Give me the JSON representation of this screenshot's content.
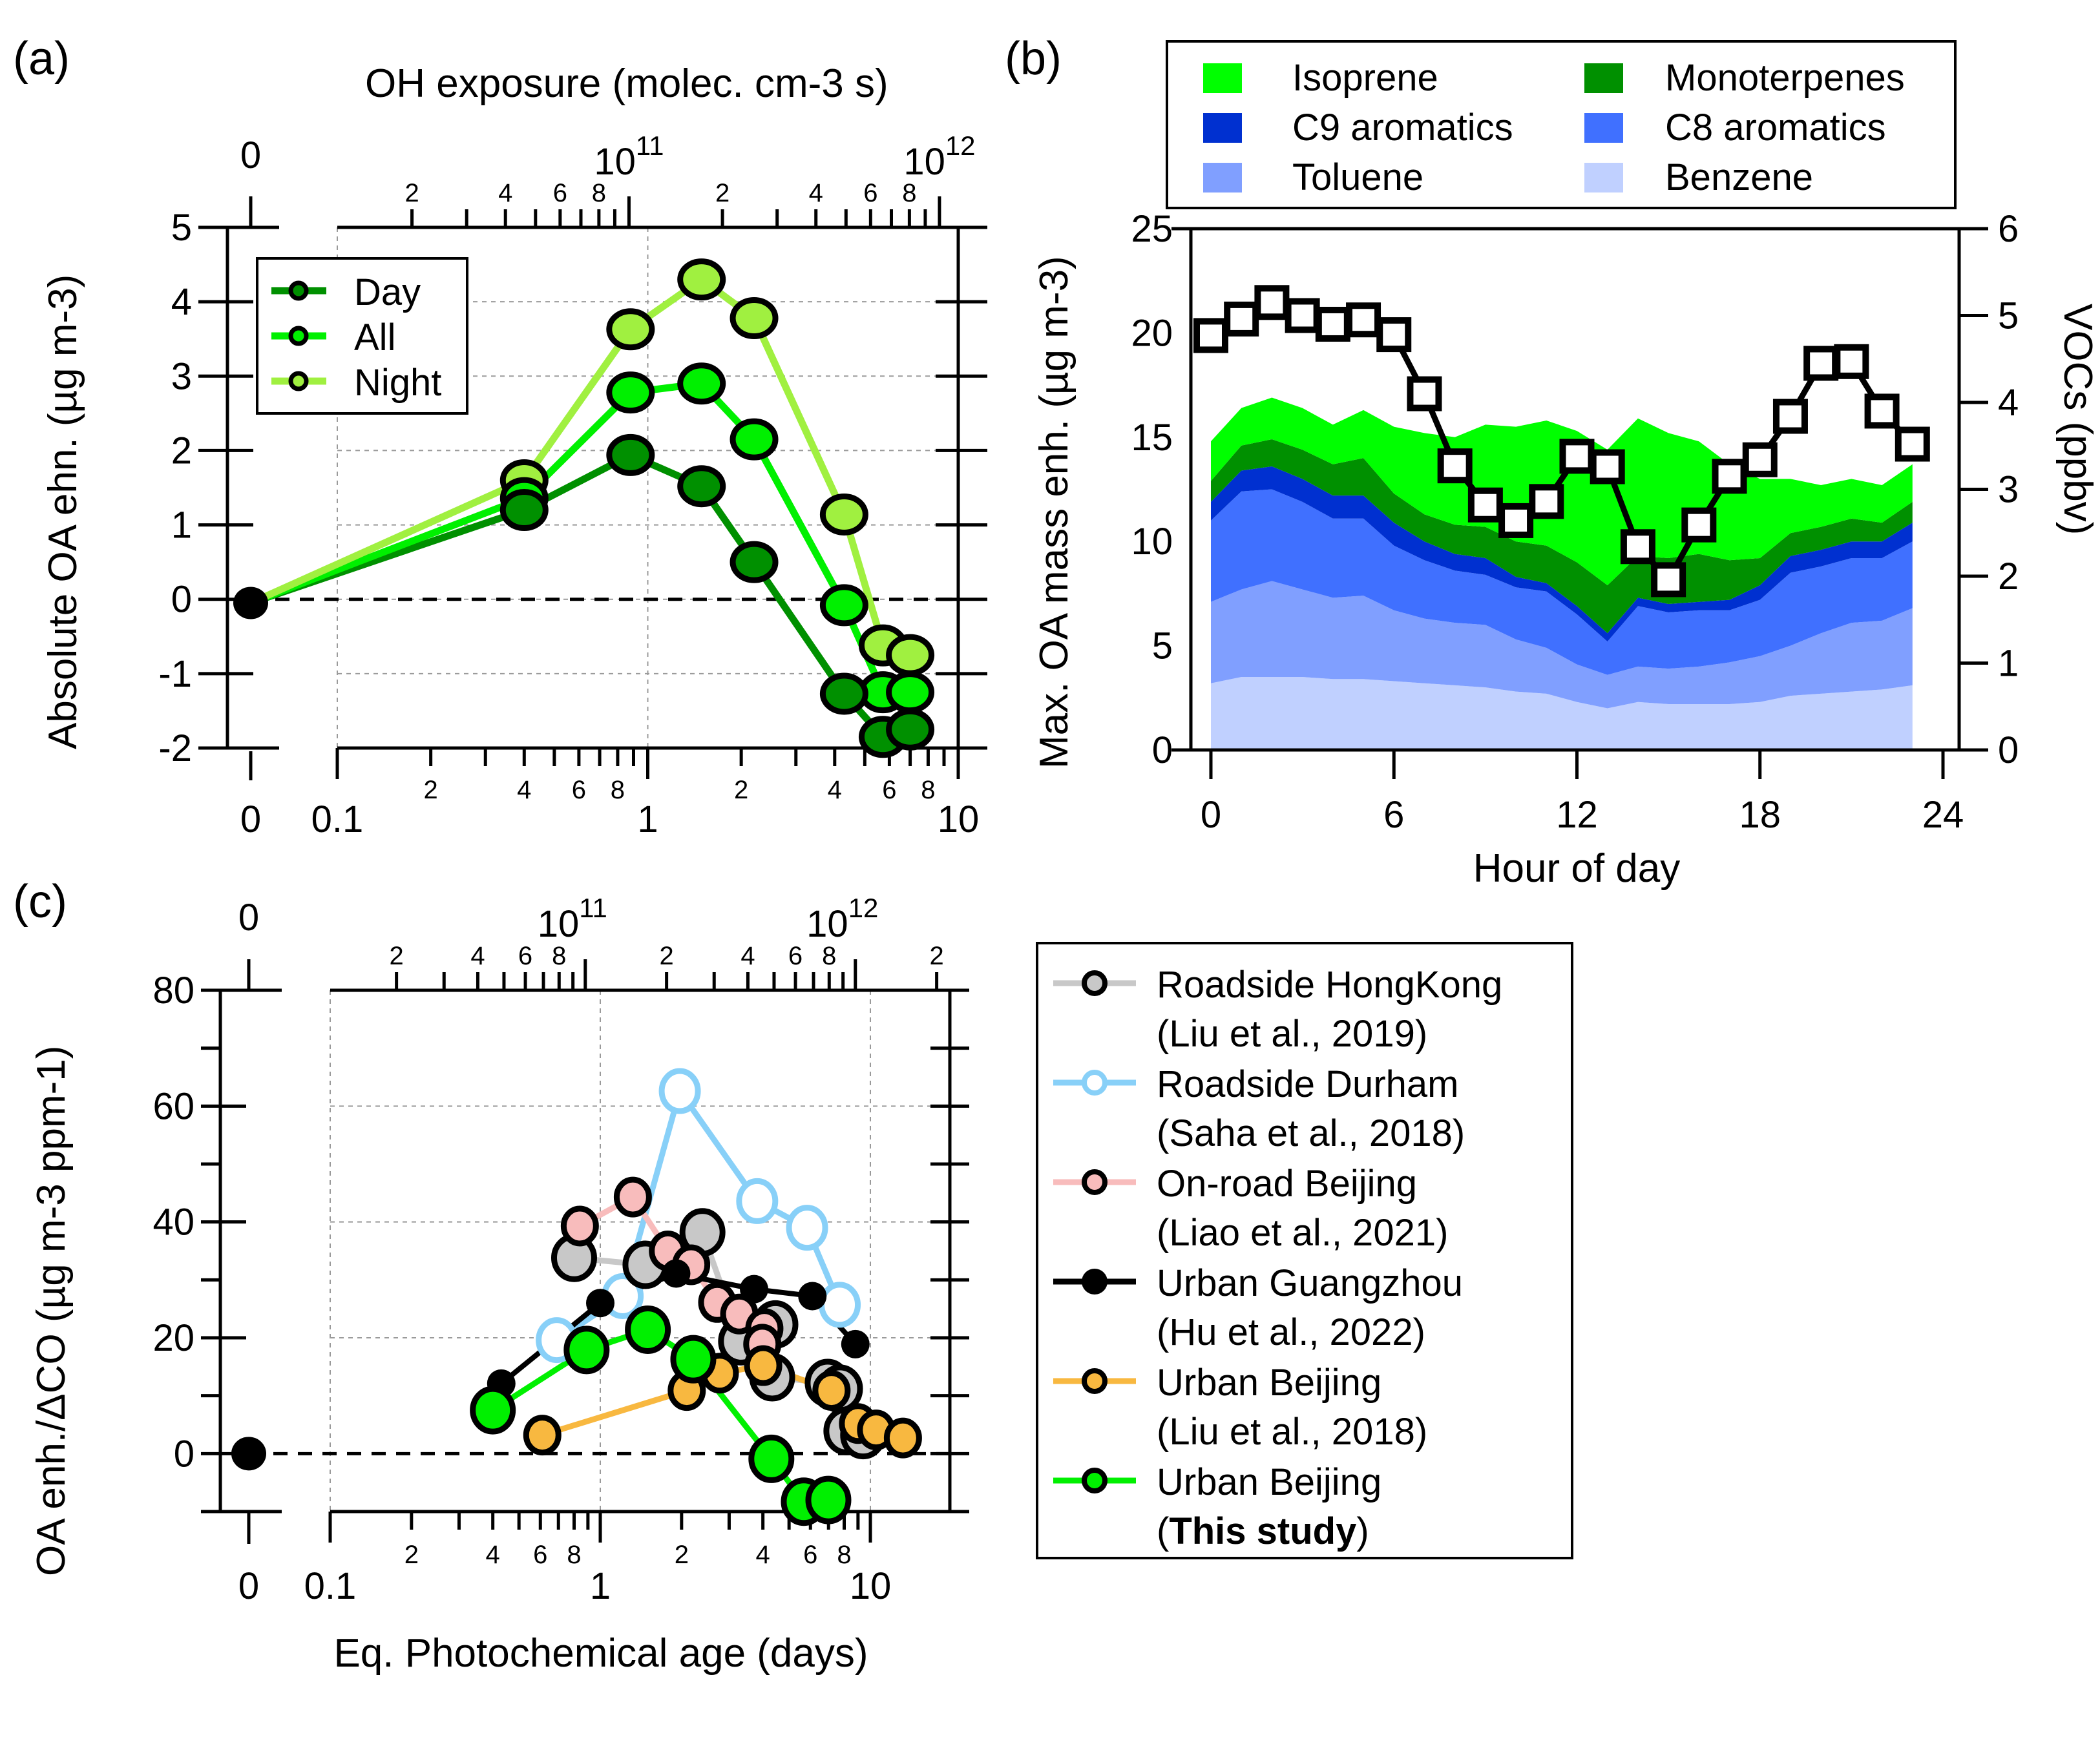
{
  "figure": {
    "panel_labels": [
      "(a)",
      "(b)",
      "(c)"
    ]
  },
  "chart_data": [
    {
      "id": "a",
      "type": "scatter",
      "title": "",
      "xlabel": "",
      "xlabel_top": "OH exposure (molec. cm-3 s)",
      "ylabel": "Absolute OA ehn. (µg m-3)",
      "xscale": "log",
      "xlim": [
        0.1,
        10
      ],
      "ylim": [
        -2,
        5
      ],
      "yticks": [
        "-2",
        "-1",
        "0",
        "1",
        "2",
        "3",
        "4",
        "5"
      ],
      "xtick_major": [
        "0.1",
        "1",
        "10"
      ],
      "xtick_minor": [
        "2",
        "4",
        "6",
        "8",
        "2",
        "4",
        "6",
        "8"
      ],
      "xtick_zero": "0",
      "top_ticks": {
        "zero": "0",
        "major": [
          "10",
          "10"
        ],
        "major_exp": [
          "11",
          "12"
        ],
        "minor": [
          "2",
          "4",
          "6",
          "8",
          "2",
          "4",
          "6",
          "8"
        ]
      },
      "grid": true,
      "legend": {
        "placement": "top-left",
        "entries": [
          "Day",
          "All",
          "Night"
        ]
      },
      "origin_point": {
        "x": 0,
        "y": -0.05
      },
      "x": [
        0.4,
        0.88,
        1.49,
        2.2,
        4.29,
        5.72,
        7.0
      ],
      "series": [
        {
          "name": "Day",
          "color": "#009000",
          "values": [
            1.2,
            1.94,
            1.52,
            0.5,
            -1.27,
            -1.85,
            -1.75
          ]
        },
        {
          "name": "All",
          "color": "#00F000",
          "values": [
            1.36,
            2.78,
            2.9,
            2.15,
            -0.08,
            -1.25,
            -1.25
          ]
        },
        {
          "name": "Night",
          "color": "#A0F040",
          "values": [
            1.6,
            3.63,
            4.3,
            3.78,
            1.14,
            -0.62,
            -0.75
          ]
        }
      ]
    },
    {
      "id": "b",
      "type": "area",
      "stacked": true,
      "xlabel": "Hour of day",
      "ylabel": "Max.  OA mass enh.  (µg m-3)",
      "ylabel_right": "VOCs (ppbv)",
      "xlim": [
        0,
        24
      ],
      "ylim": [
        0,
        25
      ],
      "ylim_right": [
        0,
        6
      ],
      "xticks": [
        "0",
        "6",
        "12",
        "18",
        "24"
      ],
      "yticks": [
        "0",
        "5",
        "10",
        "15",
        "20",
        "25"
      ],
      "yticks_right": [
        "0",
        "1",
        "2",
        "3",
        "4",
        "5",
        "6"
      ],
      "legend": {
        "placement": "top",
        "columns": 2
      },
      "x": [
        0,
        1,
        2,
        3,
        4,
        5,
        6,
        7,
        8,
        9,
        10,
        11,
        12,
        13,
        14,
        15,
        16,
        17,
        18,
        19,
        20,
        21,
        22,
        23
      ],
      "series": [
        {
          "name": "Benzene",
          "color": "#C0D0FF",
          "cumulative_top": [
            3.2,
            3.5,
            3.5,
            3.5,
            3.4,
            3.4,
            3.3,
            3.2,
            3.1,
            3.0,
            2.8,
            2.7,
            2.3,
            2.0,
            2.3,
            2.2,
            2.2,
            2.2,
            2.3,
            2.6,
            2.7,
            2.8,
            2.9,
            3.1
          ]
        },
        {
          "name": "Toluene",
          "color": "#809FFF",
          "cumulative_top": [
            7.1,
            7.7,
            8.1,
            7.7,
            7.3,
            7.4,
            6.7,
            6.3,
            6.1,
            6.0,
            5.3,
            4.9,
            4.1,
            3.6,
            4.0,
            3.9,
            4.0,
            4.2,
            4.5,
            5.0,
            5.6,
            6.1,
            6.2,
            6.8
          ]
        },
        {
          "name": "C8 aromatics",
          "color": "#4070FF",
          "cumulative_top": [
            11.0,
            12.4,
            12.5,
            11.9,
            11.1,
            11.1,
            9.8,
            9.1,
            8.6,
            8.4,
            7.8,
            7.6,
            6.5,
            5.2,
            6.9,
            6.6,
            6.7,
            6.7,
            7.2,
            8.5,
            8.8,
            9.2,
            9.2,
            10.0
          ]
        },
        {
          "name": "C9 aromatics",
          "color": "#0030D0",
          "cumulative_top": [
            11.9,
            13.4,
            13.6,
            13.0,
            12.2,
            12.2,
            10.9,
            10.0,
            9.4,
            9.2,
            8.3,
            8.0,
            6.9,
            5.6,
            7.3,
            7.0,
            7.1,
            7.2,
            7.9,
            9.3,
            9.6,
            10.0,
            10.0,
            10.9
          ]
        },
        {
          "name": "Monoterpenes",
          "color": "#009000",
          "cumulative_top": [
            12.9,
            14.6,
            14.9,
            14.4,
            13.7,
            14.0,
            12.3,
            11.3,
            10.8,
            10.7,
            10.0,
            9.8,
            9.0,
            7.9,
            9.3,
            9.2,
            9.4,
            9.1,
            9.2,
            10.4,
            10.7,
            11.1,
            10.9,
            11.9
          ]
        },
        {
          "name": "Isoprene",
          "color": "#00FF00",
          "cumulative_top": [
            14.8,
            16.4,
            16.9,
            16.4,
            15.6,
            16.3,
            15.5,
            15.2,
            15.0,
            15.6,
            15.5,
            15.8,
            15.3,
            14.4,
            15.9,
            15.2,
            14.8,
            13.7,
            13.0,
            13.0,
            12.7,
            13.0,
            12.7,
            13.7
          ]
        }
      ],
      "legend_order": [
        "Isoprene",
        "Monoterpenes",
        "C9 aromatics",
        "C8 aromatics",
        "Toluene",
        "Benzene"
      ],
      "line_series": {
        "name": "VOCs",
        "axis": "right",
        "marker": "open-square",
        "values": [
          4.77,
          4.96,
          5.15,
          5.0,
          4.9,
          4.95,
          4.78,
          4.1,
          3.27,
          2.82,
          2.64,
          2.86,
          3.38,
          3.26,
          2.34,
          1.96,
          2.59,
          3.15,
          3.34,
          3.84,
          4.45,
          4.47,
          3.9,
          3.52
        ]
      }
    },
    {
      "id": "c",
      "type": "scatter",
      "xlabel": "Eq. Photochemical age (days)",
      "ylabel": "OA enh./ΔCO (µg m-3 ppm-1)",
      "xscale": "log",
      "xlim": [
        0.1,
        20
      ],
      "ylim": [
        -10,
        80
      ],
      "yticks": [
        "0",
        "20",
        "40",
        "60",
        "80"
      ],
      "xtick_major": [
        "0.1",
        "1",
        "10"
      ],
      "xtick_minor": [
        "2",
        "4",
        "6",
        "8",
        "2",
        "4",
        "6",
        "8",
        "2"
      ],
      "xtick_zero": "0",
      "top_ticks": {
        "zero": "0",
        "major": [
          "10",
          "10"
        ],
        "major_exp": [
          "11",
          "12"
        ],
        "minor": [
          "2",
          "4",
          "6",
          "8",
          "2",
          "4",
          "6",
          "8",
          "2"
        ]
      },
      "grid": true,
      "legend": {
        "placement": "right-outside"
      },
      "origin_point": {
        "x": 0,
        "y": 0
      },
      "series": [
        {
          "name": "Roadside HongKong",
          "ref": "(Liu et al., 2019)",
          "line": "#C8C8C8",
          "fill": "#C8C8C8",
          "marker": "filled-outlined",
          "points": [
            [
              0.8,
              33.8
            ],
            [
              1.47,
              32.6
            ],
            [
              2.39,
              38.2
            ],
            [
              3.32,
              19.4
            ],
            [
              4.45,
              22.3
            ],
            [
              4.33,
              13.2
            ],
            [
              6.95,
              12.2
            ],
            [
              7.72,
              11.2
            ],
            [
              8.15,
              3.9
            ],
            [
              9.4,
              3.2
            ]
          ]
        },
        {
          "name": "Roadside Durham",
          "ref": "(Saha et al., 2018)",
          "line": "#88D0F8",
          "fill": "#FFFFFF",
          "marker": "open",
          "points": [
            [
              0.69,
              19.6
            ],
            [
              1.21,
              27.2
            ],
            [
              1.97,
              62.6
            ],
            [
              3.81,
              43.6
            ],
            [
              5.83,
              39.0
            ],
            [
              7.7,
              25.7
            ]
          ]
        },
        {
          "name": "On-road Beijing",
          "ref": "(Liao et al., 2021)",
          "line": "#F8BCBC",
          "fill": "#F8BCBC",
          "marker": "filled-outlined",
          "points": [
            [
              0.84,
              39.3
            ],
            [
              1.32,
              44.3
            ],
            [
              1.78,
              35.0
            ],
            [
              2.17,
              32.6
            ],
            [
              2.71,
              26.1
            ],
            [
              3.27,
              24.1
            ],
            [
              4.05,
              21.6
            ],
            [
              3.98,
              18.9
            ]
          ]
        },
        {
          "name": "Urban Guangzhou",
          "ref": "(Hu et al., 2022)",
          "line": "#000000",
          "fill": "#000000",
          "marker": "filled",
          "points": [
            [
              0.43,
              12.1
            ],
            [
              1.0,
              26.0
            ],
            [
              1.91,
              31.1
            ],
            [
              3.71,
              28.4
            ],
            [
              6.1,
              27.2
            ],
            [
              8.8,
              18.9
            ]
          ]
        },
        {
          "name": "Urban Beijing",
          "ref": "(Liu et al., 2018)",
          "line": "#F8B840",
          "fill": "#F8B840",
          "marker": "filled-outlined",
          "points": [
            [
              0.61,
              3.2
            ],
            [
              2.09,
              10.9
            ],
            [
              2.77,
              13.9
            ],
            [
              4.01,
              15.2
            ],
            [
              7.18,
              10.9
            ],
            [
              9.0,
              5.2
            ],
            [
              10.5,
              4.1
            ],
            [
              13.2,
              2.7
            ]
          ]
        },
        {
          "name": "Urban Beijing",
          "ref_prefix": "(",
          "ref_bold": "This study",
          "ref_suffix": ")",
          "line": "#00F000",
          "fill": "#00F000",
          "marker": "filled-outlined",
          "points": [
            [
              0.4,
              7.5
            ],
            [
              0.89,
              17.9
            ],
            [
              1.5,
              21.4
            ],
            [
              2.21,
              16.3
            ],
            [
              4.3,
              -0.9
            ],
            [
              5.67,
              -8.3
            ],
            [
              6.99,
              -8.0
            ]
          ]
        }
      ]
    }
  ]
}
